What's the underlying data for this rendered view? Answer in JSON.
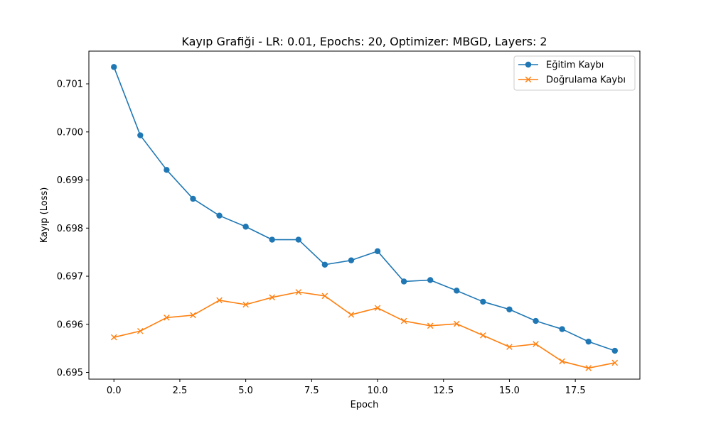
{
  "chart_data": {
    "type": "line",
    "title": "Kayıp Grafiği - LR: 0.01, Epochs: 20, Optimizer: MBGD, Layers: 2",
    "xlabel": "Epoch",
    "ylabel": "Kayıp (Loss)",
    "xlim": [
      -0.95,
      19.95
    ],
    "ylim": [
      0.69486,
      0.70168
    ],
    "xticks": [
      0.0,
      2.5,
      5.0,
      7.5,
      10.0,
      12.5,
      15.0,
      17.5
    ],
    "xtick_labels": [
      "0.0",
      "2.5",
      "5.0",
      "7.5",
      "10.0",
      "12.5",
      "15.0",
      "17.5"
    ],
    "yticks": [
      0.695,
      0.696,
      0.697,
      0.698,
      0.699,
      0.7,
      0.701
    ],
    "ytick_labels": [
      "0.695",
      "0.696",
      "0.697",
      "0.698",
      "0.699",
      "0.700",
      "0.701"
    ],
    "grid": false,
    "legend_position": "top-right",
    "x": [
      0,
      1,
      2,
      3,
      4,
      5,
      6,
      7,
      8,
      9,
      10,
      11,
      12,
      13,
      14,
      15,
      16,
      17,
      18,
      19
    ],
    "series": [
      {
        "name": "Eğitim Kaybı",
        "color": "#1f77b4",
        "marker": "circle",
        "values": [
          0.70135,
          0.69993,
          0.69921,
          0.69861,
          0.69826,
          0.69803,
          0.69776,
          0.69776,
          0.69724,
          0.69733,
          0.69752,
          0.69689,
          0.69692,
          0.6967,
          0.69647,
          0.69631,
          0.69607,
          0.6959,
          0.69564,
          0.69545
        ]
      },
      {
        "name": "Doğrulama Kaybı",
        "color": "#ff7f0e",
        "marker": "x",
        "values": [
          0.69573,
          0.69586,
          0.69614,
          0.69619,
          0.6965,
          0.69641,
          0.69656,
          0.69667,
          0.69659,
          0.6962,
          0.69634,
          0.69607,
          0.69597,
          0.69601,
          0.69577,
          0.69553,
          0.69559,
          0.69523,
          0.69509,
          0.6952
        ]
      }
    ]
  }
}
